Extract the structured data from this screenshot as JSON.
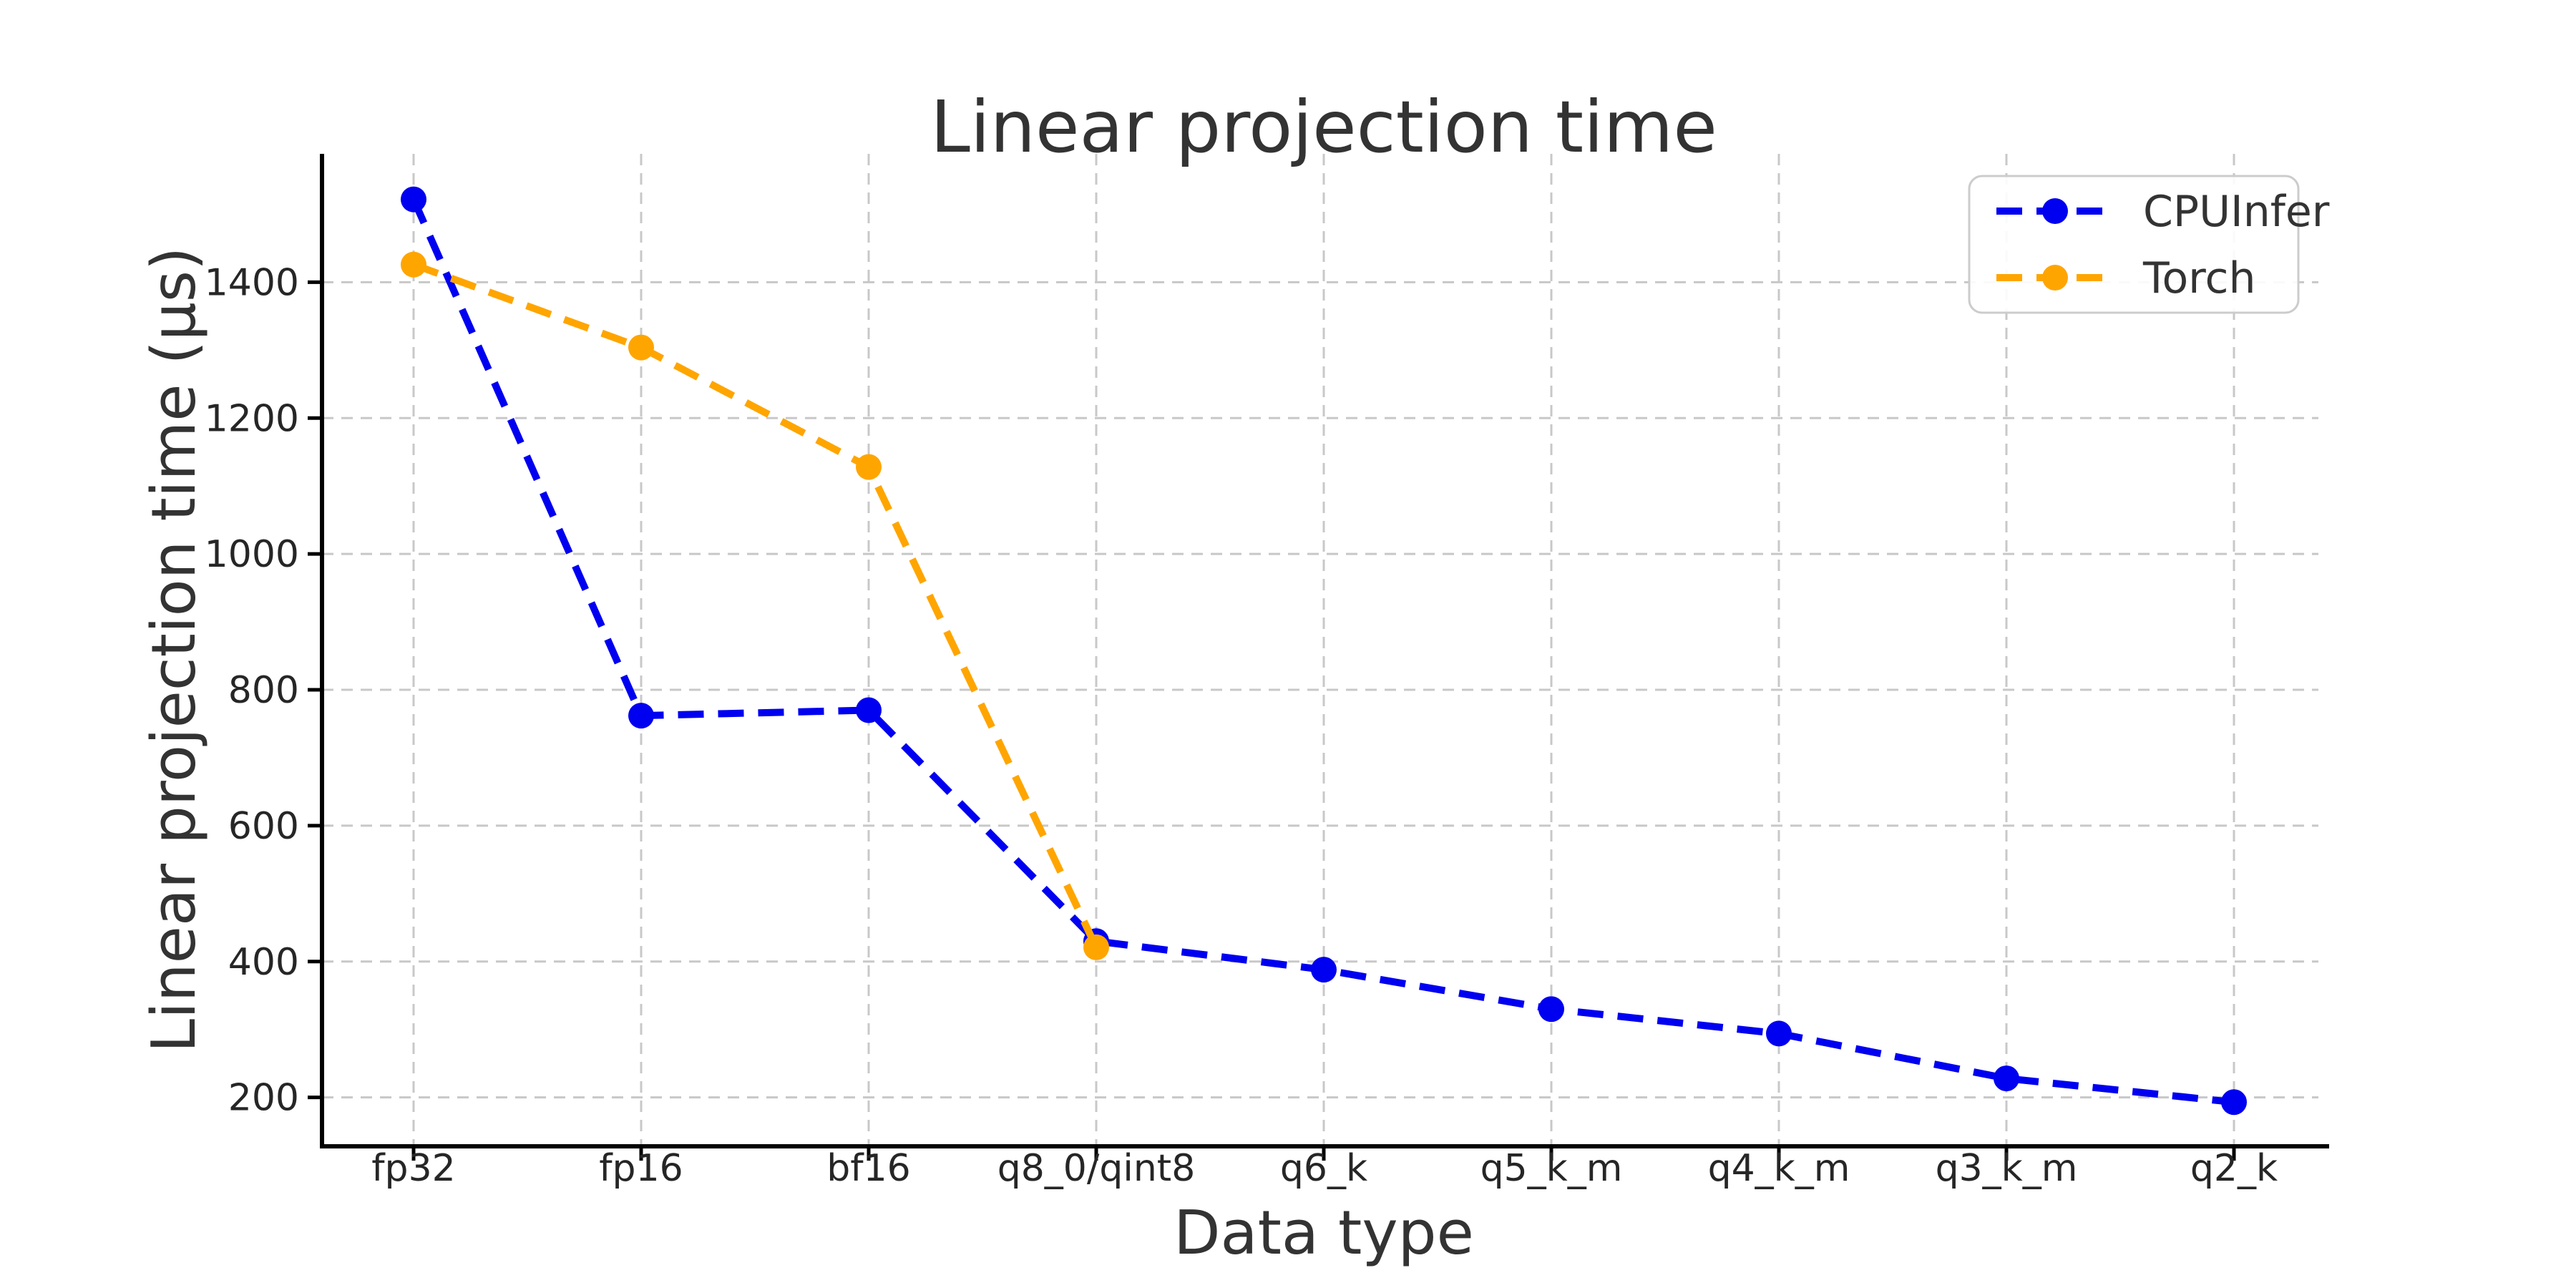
{
  "figure": {
    "background": "#ffffff"
  },
  "chart_data": {
    "type": "line",
    "title": "Linear projection time",
    "xlabel": "Data type",
    "ylabel": "Linear projection time (µs)",
    "categories": [
      "fp32",
      "fp16",
      "bf16",
      "q8_0/qint8",
      "q6_k",
      "q5_k_m",
      "q4_k_m",
      "q3_k_m",
      "q2_k"
    ],
    "series": [
      {
        "name": "CPUInfer",
        "color": "#0000f0",
        "linestyle": "dashed",
        "marker": "circle",
        "values": [
          1522,
          762,
          770,
          430,
          388,
          330,
          294,
          228,
          193
        ]
      },
      {
        "name": "Torch",
        "color": "#ffa500",
        "linestyle": "dashed",
        "marker": "circle",
        "values": [
          1426,
          1304,
          1128,
          421,
          null,
          null,
          null,
          null,
          null
        ]
      }
    ],
    "yticks": [
      200,
      400,
      600,
      800,
      1000,
      1200,
      1400
    ],
    "ylim": [
      128,
      1589
    ],
    "grid": true,
    "grid_color": "#c8c8c8",
    "spine_color": "#000000",
    "text_color": "#333333",
    "legend": {
      "position": "upper right",
      "entries": [
        "CPUInfer",
        "Torch"
      ]
    }
  }
}
